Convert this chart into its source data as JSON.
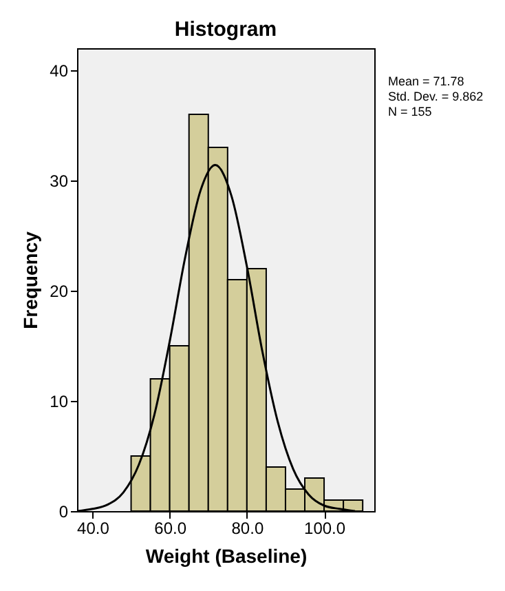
{
  "chart_data": {
    "type": "histogram",
    "title": "Histogram",
    "xlabel": "Weight (Baseline)",
    "ylabel": "Frequency",
    "bins": [
      50,
      55,
      60,
      65,
      70,
      75,
      80,
      85,
      90,
      95,
      100,
      105,
      110
    ],
    "values": [
      5,
      12,
      15,
      36,
      33,
      21,
      22,
      4,
      2,
      3,
      1,
      1
    ],
    "color": "#d4ce9b",
    "series": [
      {
        "type": "line",
        "color": "#000000",
        "x": [
          36,
          40,
          44,
          48,
          52,
          56,
          60,
          64,
          68,
          71.8,
          76,
          80,
          84,
          88,
          92,
          96,
          100,
          104,
          108
        ],
        "values": [
          0,
          0.2,
          0.6,
          1.7,
          4.2,
          8.7,
          15.4,
          23,
          29.1,
          31.4,
          28.6,
          22.2,
          14.5,
          8.1,
          3.8,
          1.5,
          0.5,
          0.2,
          0
        ]
      }
    ],
    "xlim": [
      36,
      113
    ],
    "ylim": [
      0,
      42
    ],
    "xticks": [
      {
        "value": 40,
        "label": "40.0"
      },
      {
        "value": 60,
        "label": "60.0"
      },
      {
        "value": 80,
        "label": "80.0"
      },
      {
        "value": 100,
        "label": "100.0"
      }
    ],
    "yticks": [
      0,
      10,
      20,
      30,
      40
    ],
    "grid": false,
    "annotations": [
      "Mean = 71.78",
      "Std. Dev. = 9.862",
      "N = 155"
    ]
  }
}
